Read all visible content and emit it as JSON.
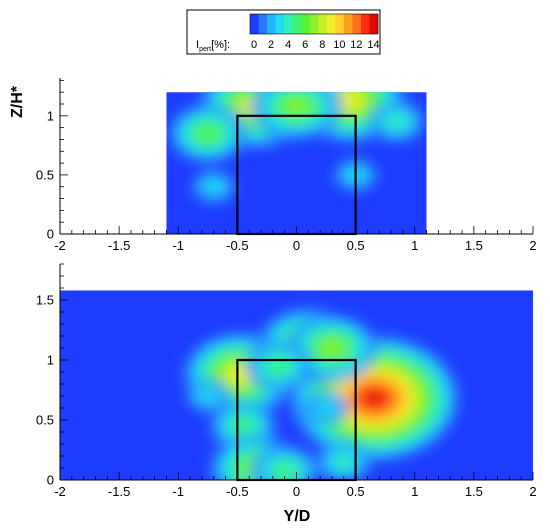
{
  "chart_data": [
    {
      "type": "heatmap",
      "panel": "top",
      "xlabel": "",
      "ylabel": "Z/H*",
      "xlim": [
        -2,
        2
      ],
      "ylim": [
        0,
        1.32
      ],
      "x_ticks": [
        "-2",
        "-1.5",
        "-1",
        "-0.5",
        "0",
        "0.5",
        "1",
        "1.5",
        "2"
      ],
      "y_ticks": [
        "0",
        "0.5",
        "1"
      ],
      "data_extent": {
        "y_range": [
          -1.1,
          1.1
        ],
        "z_range": [
          0,
          1.2
        ]
      },
      "structure_outline": {
        "y": [
          -0.5,
          0.5
        ],
        "z": [
          0,
          1.0
        ]
      },
      "hotspots": [
        {
          "y": -0.35,
          "z": 1.08,
          "value": 9
        },
        {
          "y": 0.45,
          "z": 1.13,
          "value": 9
        },
        {
          "y": -0.75,
          "z": 0.85,
          "value": 6
        },
        {
          "y": 0.0,
          "z": 1.08,
          "value": 7
        },
        {
          "y": 0.85,
          "z": 0.95,
          "value": 4
        },
        {
          "y": -0.7,
          "z": 0.4,
          "value": 3
        },
        {
          "y": 0.5,
          "z": 0.5,
          "value": 3
        }
      ]
    },
    {
      "type": "heatmap",
      "panel": "bottom",
      "xlabel": "Y/D",
      "ylabel": "",
      "xlim": [
        -2,
        2
      ],
      "ylim": [
        0,
        1.8
      ],
      "x_ticks": [
        "-2",
        "-1.5",
        "-1",
        "-0.5",
        "0",
        "0.5",
        "1",
        "1.5",
        "2"
      ],
      "y_ticks": [
        "0",
        "0.5",
        "1",
        "1.5"
      ],
      "data_extent": {
        "y_range": [
          -2,
          2
        ],
        "z_range": [
          0,
          1.58
        ]
      },
      "structure_outline": {
        "y": [
          -0.5,
          0.5
        ],
        "z": [
          0,
          1.0
        ]
      },
      "hotspots": [
        {
          "y": 0.66,
          "z": 0.68,
          "value": 14
        },
        {
          "y": -0.48,
          "z": 0.88,
          "value": 9
        },
        {
          "y": 0.1,
          "z": 1.12,
          "value": 8
        },
        {
          "y": 0.3,
          "z": 1.1,
          "value": 7
        },
        {
          "y": -0.15,
          "z": 0.95,
          "value": 5
        },
        {
          "y": -0.45,
          "z": 0.45,
          "value": 5
        },
        {
          "y": -0.35,
          "z": 0.1,
          "value": 7
        },
        {
          "y": -0.1,
          "z": 0.08,
          "value": 5
        },
        {
          "y": 0.4,
          "z": 0.15,
          "value": 4
        },
        {
          "y": 0.25,
          "z": 0.6,
          "value": 3
        },
        {
          "y": -0.75,
          "z": 0.7,
          "value": 3
        }
      ]
    }
  ],
  "legend": {
    "label": "I",
    "label_sub": "pert",
    "label_tail": "[%]:",
    "ticks": [
      "0",
      "2",
      "4",
      "6",
      "8",
      "10",
      "12",
      "14"
    ],
    "range": [
      0,
      15
    ],
    "colors": [
      "#1e3cff",
      "#2a78ff",
      "#22b4ff",
      "#20dcf0",
      "#2ef0b4",
      "#3cf26e",
      "#58f03a",
      "#8cf02a",
      "#c4f028",
      "#f2f02c",
      "#ffd028",
      "#ffa020",
      "#ff6e18",
      "#ff2a10",
      "#e00808"
    ]
  }
}
